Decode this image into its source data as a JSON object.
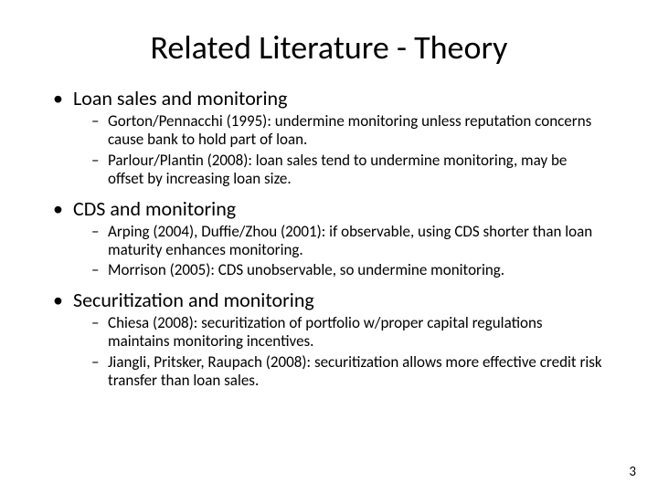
{
  "title": "Related Literature - Theory",
  "bullets": {
    "b1": {
      "label": "Loan sales and monitoring"
    },
    "b1s1": "Gorton/Pennacchi (1995): undermine monitoring unless reputation concerns cause bank to hold part of loan.",
    "b1s2": "Parlour/Plantin (2008): loan sales tend to undermine monitoring, may be offset by increasing loan size.",
    "b2": {
      "label": "CDS and monitoring"
    },
    "b2s1": "Arping (2004), Duffie/Zhou (2001): if observable, using CDS shorter than loan maturity enhances monitoring.",
    "b2s2": "Morrison (2005): CDS unobservable, so undermine monitoring.",
    "b3": {
      "label": "Securitization and monitoring"
    },
    "b3s1": "Chiesa (2008): securitization of portfolio w/proper capital regulations maintains monitoring incentives.",
    "b3s2": "Jiangli, Pritsker, Raupach (2008): securitization allows more effective credit risk transfer than loan sales."
  },
  "pageNumber": "3",
  "style": {
    "background_color": "#ffffff",
    "text_color": "#000000",
    "title_fontsize": 36,
    "main_bullet_fontsize": 22,
    "sub_bullet_fontsize": 17,
    "pagenum_fontsize": 15,
    "font_family": "Calibri"
  }
}
